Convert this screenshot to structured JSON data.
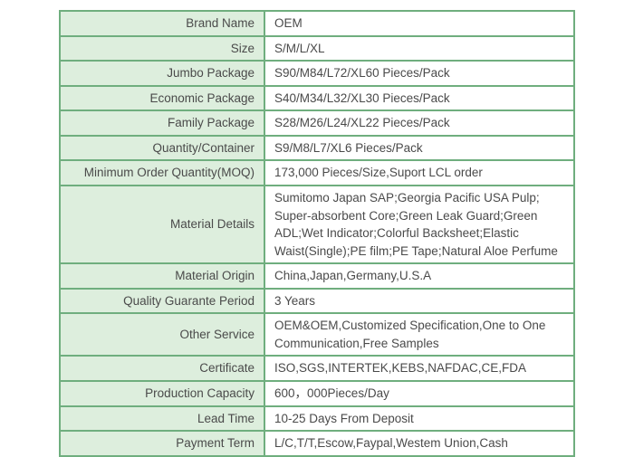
{
  "table": {
    "name": "product-specification-table",
    "accent_color": "#6fae7e",
    "label_bg_color": "#ddeedd",
    "text_color": "#4a4a4a"
  },
  "rows": [
    {
      "label": "Brand Name",
      "value": "OEM"
    },
    {
      "label": "Size",
      "value": "S/M/L/XL"
    },
    {
      "label": "Jumbo Package",
      "value": "S90/M84/L72/XL60 Pieces/Pack"
    },
    {
      "label": "Economic Package",
      "value": "S40/M34/L32/XL30 Pieces/Pack"
    },
    {
      "label": "Family Package",
      "value": "S28/M26/L24/XL22 Pieces/Pack"
    },
    {
      "label": "Quantity/Container",
      "value": "S9/M8/L7/XL6 Pieces/Pack"
    },
    {
      "label": "Minimum Order Quantity(MOQ)",
      "value": "173,000 Pieces/Size,Suport LCL order"
    },
    {
      "label": "Material Details",
      "value": "Sumitomo Japan SAP;Georgia Pacific USA Pulp; Super-absorbent Core;Green Leak Guard;Green ADL;Wet Indicator;Colorful Backsheet;Elastic Waist(Single);PE film;PE Tape;Natural Aloe Perfume"
    },
    {
      "label": "Material Origin",
      "value": "China,Japan,Germany,U.S.A"
    },
    {
      "label": "Quality Guarante Period",
      "value": "3 Years"
    },
    {
      "label": "Other Service",
      "value": "OEM&OEM,Customized Specification,One to One Communication,Free Samples"
    },
    {
      "label": "Certificate",
      "value": "ISO,SGS,INTERTEK,KEBS,NAFDAC,CE,FDA"
    },
    {
      "label": "Production Capacity",
      "value": "600，000Pieces/Day"
    },
    {
      "label": "Lead Time",
      "value": "10-25 Days From Deposit"
    },
    {
      "label": "Payment Term",
      "value": "L/C,T/T,Escow,Faypal,Westem Union,Cash"
    }
  ]
}
